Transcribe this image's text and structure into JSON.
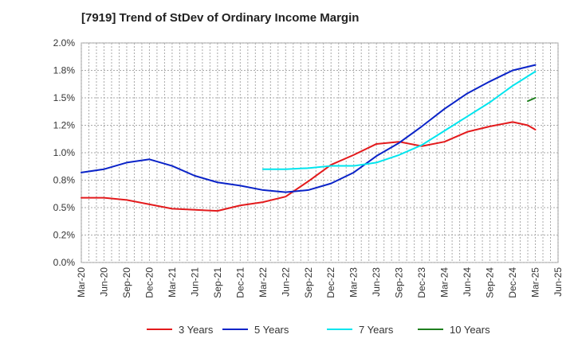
{
  "chart_data": {
    "type": "line",
    "title": "[7919]  Trend of StDev of Ordinary Income Margin",
    "xlabel": "",
    "ylabel": "",
    "ylim": [
      0,
      2.0
    ],
    "yticks": [
      "0.0%",
      "0.2%",
      "0.5%",
      "0.8%",
      "1.0%",
      "1.2%",
      "1.5%",
      "1.8%",
      "2.0%"
    ],
    "ytick_values": [
      0,
      0.25,
      0.5,
      0.75,
      1.0,
      1.25,
      1.5,
      1.75,
      2.0
    ],
    "x_tick_labels": [
      "Mar-20",
      "Jun-20",
      "Sep-20",
      "Dec-20",
      "Mar-21",
      "Jun-21",
      "Sep-21",
      "Dec-21",
      "Mar-22",
      "Jun-22",
      "Sep-22",
      "Dec-22",
      "Mar-23",
      "Jun-23",
      "Sep-23",
      "Dec-23",
      "Mar-24",
      "Jun-24",
      "Sep-24",
      "Dec-24",
      "Mar-25",
      "Jun-25"
    ],
    "grid": true,
    "legend_position": "bottom",
    "series": [
      {
        "name": "3 Years",
        "color": "#e31a1c",
        "points": [
          [
            "Mar-20",
            0.59
          ],
          [
            "Jun-20",
            0.59
          ],
          [
            "Sep-20",
            0.57
          ],
          [
            "Dec-20",
            0.53
          ],
          [
            "Mar-21",
            0.49
          ],
          [
            "Jun-21",
            0.48
          ],
          [
            "Sep-21",
            0.47
          ],
          [
            "Dec-21",
            0.52
          ],
          [
            "Mar-22",
            0.55
          ],
          [
            "Jun-22",
            0.6
          ],
          [
            "Sep-22",
            0.74
          ],
          [
            "Dec-22",
            0.89
          ],
          [
            "Mar-23",
            0.98
          ],
          [
            "Jun-23",
            1.08
          ],
          [
            "Sep-23",
            1.1
          ],
          [
            "Dec-23",
            1.06
          ],
          [
            "Mar-24",
            1.1
          ],
          [
            "Jun-24",
            1.19
          ],
          [
            "Sep-24",
            1.24
          ],
          [
            "Dec-24",
            1.28
          ],
          [
            "Feb-25",
            1.25
          ],
          [
            "Mar-25",
            1.21
          ]
        ]
      },
      {
        "name": "5 Years",
        "color": "#0a23c8",
        "points": [
          [
            "Mar-20",
            0.82
          ],
          [
            "Jun-20",
            0.85
          ],
          [
            "Sep-20",
            0.91
          ],
          [
            "Dec-20",
            0.94
          ],
          [
            "Mar-21",
            0.88
          ],
          [
            "Jun-21",
            0.79
          ],
          [
            "Sep-21",
            0.73
          ],
          [
            "Dec-21",
            0.7
          ],
          [
            "Mar-22",
            0.66
          ],
          [
            "Jun-22",
            0.64
          ],
          [
            "Sep-22",
            0.66
          ],
          [
            "Dec-22",
            0.72
          ],
          [
            "Mar-23",
            0.82
          ],
          [
            "Jun-23",
            0.97
          ],
          [
            "Sep-23",
            1.09
          ],
          [
            "Dec-23",
            1.24
          ],
          [
            "Mar-24",
            1.4
          ],
          [
            "Jun-24",
            1.54
          ],
          [
            "Sep-24",
            1.65
          ],
          [
            "Dec-24",
            1.75
          ],
          [
            "Mar-25",
            1.8
          ]
        ]
      },
      {
        "name": "7 Years",
        "color": "#00e5ee",
        "points": [
          [
            "Mar-22",
            0.85
          ],
          [
            "Jun-22",
            0.85
          ],
          [
            "Sep-22",
            0.86
          ],
          [
            "Dec-22",
            0.88
          ],
          [
            "Mar-23",
            0.88
          ],
          [
            "Jun-23",
            0.91
          ],
          [
            "Sep-23",
            0.98
          ],
          [
            "Dec-23",
            1.07
          ],
          [
            "Mar-24",
            1.2
          ],
          [
            "Jun-24",
            1.33
          ],
          [
            "Sep-24",
            1.46
          ],
          [
            "Dec-24",
            1.61
          ],
          [
            "Mar-25",
            1.74
          ]
        ]
      },
      {
        "name": "10 Years",
        "color": "#1e7f1e",
        "points": [
          [
            "Feb-25",
            1.47
          ],
          [
            "Mar-25",
            1.5
          ]
        ]
      }
    ]
  }
}
